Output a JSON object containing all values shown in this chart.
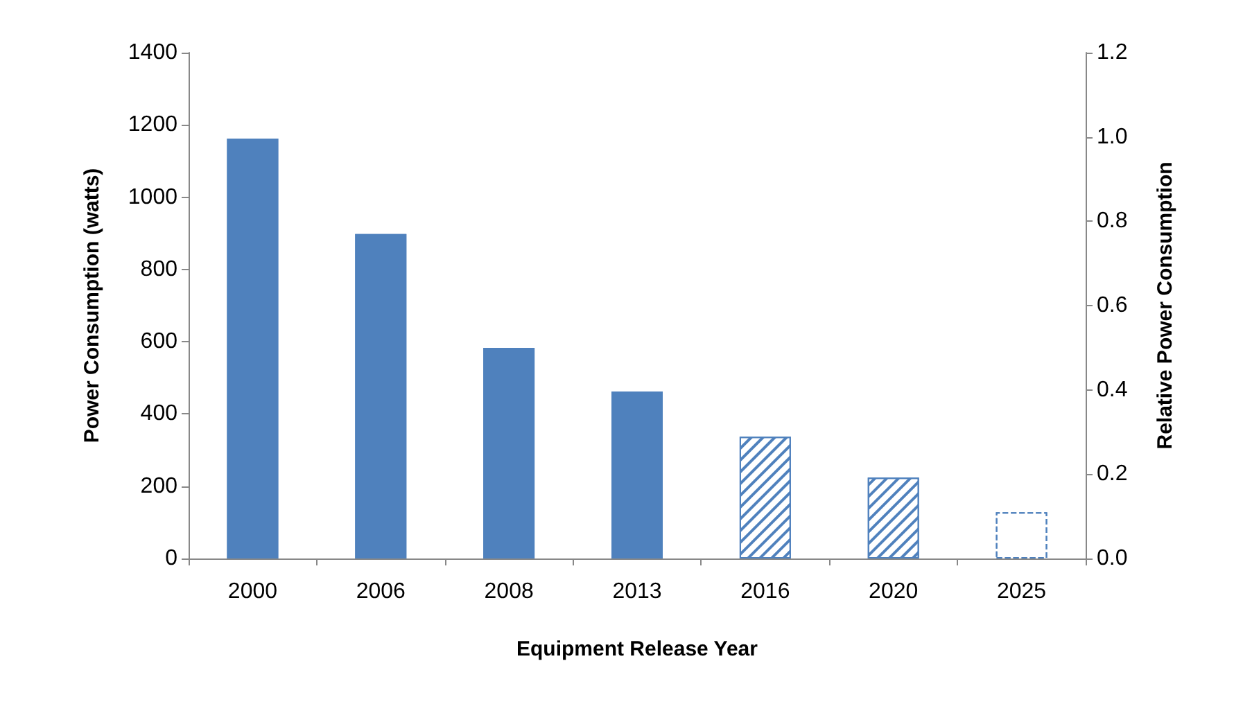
{
  "chart_data": {
    "type": "bar",
    "xlabel": "Equipment Release Year",
    "ylabel": "Power Consumption (watts)",
    "y2label": "Relative Power Consumption",
    "categories": [
      "2000",
      "2006",
      "2008",
      "2013",
      "2016",
      "2020",
      "2025"
    ],
    "stacked": true,
    "series": [
      {
        "color": "#4f81bd",
        "values": [
          1162,
          898,
          583,
          462,
          null,
          null,
          null
        ]
      },
      {
        "color": "#4f81bd",
        "line_style": "solid",
        "values": [
          null,
          null,
          null,
          null,
          337,
          224,
          null
        ]
      },
      {
        "color": "#4f81bd",
        "line_style": "dashed",
        "values": [
          null,
          null,
          null,
          null,
          null,
          null,
          128
        ]
      }
    ],
    "ylim": [
      0,
      1400
    ],
    "yticks": [
      0,
      200,
      400,
      600,
      800,
      1000,
      1200,
      1400
    ],
    "y2lim": [
      0,
      1.2
    ],
    "y2ticks": [
      {
        "value": 0,
        "label": "0.0"
      },
      {
        "value": 0.2,
        "label": "0.2"
      },
      {
        "value": 0.4,
        "label": "0.4"
      },
      {
        "value": 0.6,
        "label": "0.6"
      },
      {
        "value": 0.8,
        "label": "0.8"
      },
      {
        "value": 1,
        "label": "1.0"
      },
      {
        "value": 1.2,
        "label": "1.2"
      }
    ],
    "grid": false
  }
}
